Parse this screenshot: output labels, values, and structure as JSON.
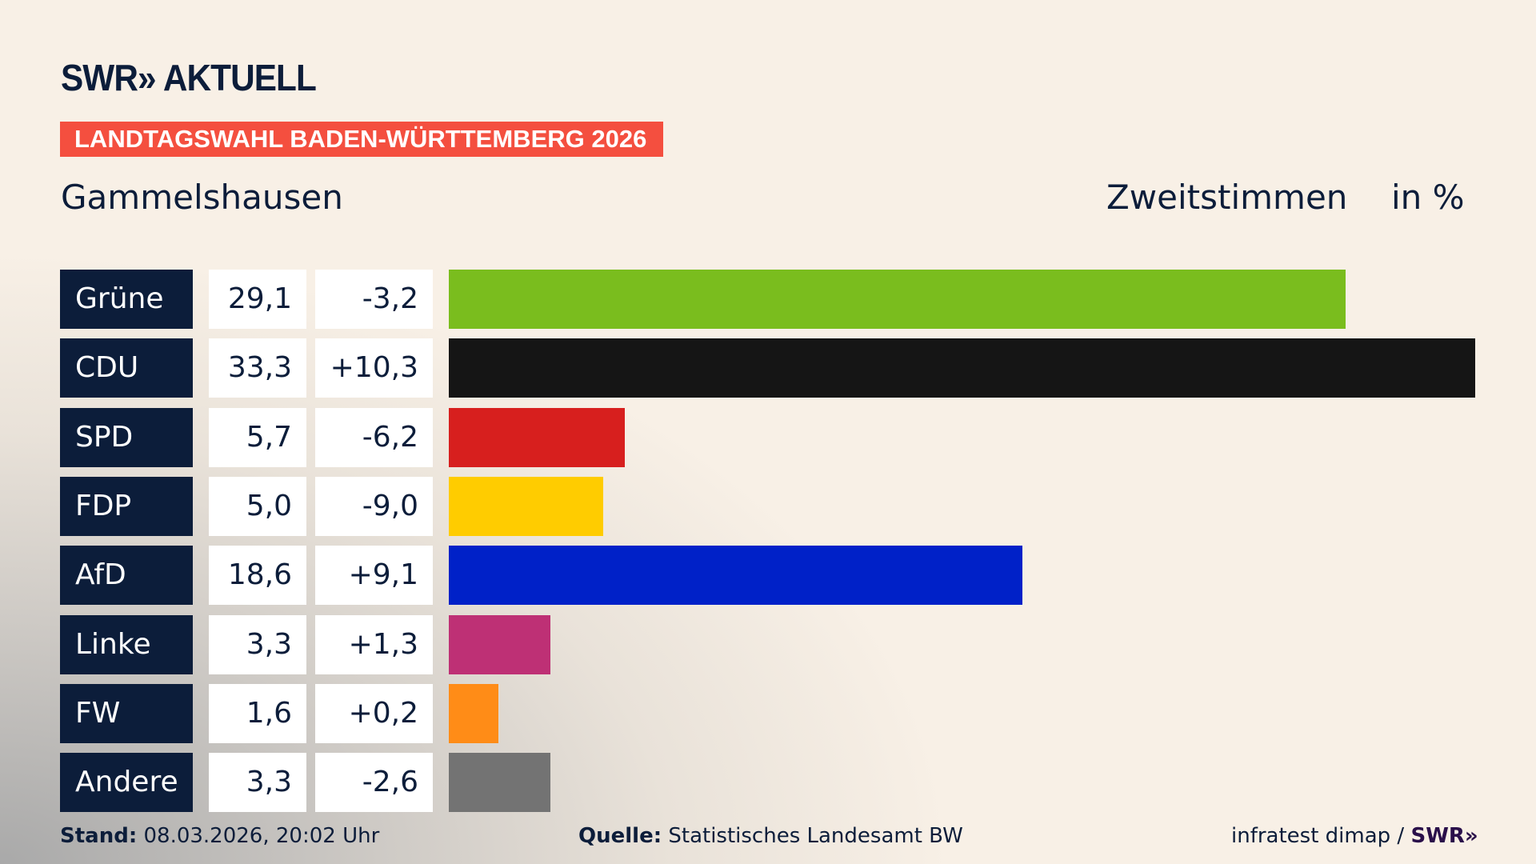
{
  "logo": "SWR» AKTUELL",
  "banner": "LANDTAGSWAHL BADEN-WÜRTTEMBERG 2026",
  "location": "Gammelshausen",
  "vote_type": "Zweitstimmen",
  "unit": "in %",
  "chart_data": {
    "type": "bar",
    "orientation": "horizontal",
    "categories": [
      "Grüne",
      "CDU",
      "SPD",
      "FDP",
      "AfD",
      "Linke",
      "FW",
      "Andere"
    ],
    "values": [
      29.1,
      33.3,
      5.7,
      5.0,
      18.6,
      3.3,
      1.6,
      3.3
    ],
    "labels": [
      "29,1",
      "33,3",
      "5,7",
      "5,0",
      "18,6",
      "3,3",
      "1,6",
      "3,3"
    ],
    "changes": [
      -3.2,
      10.3,
      -6.2,
      -9.0,
      9.1,
      1.3,
      0.2,
      -2.6
    ],
    "change_labels": [
      "-3,2",
      "+10,3",
      "-6,2",
      "-9,0",
      "+9,1",
      "+1,3",
      "+0,2",
      "-2,6"
    ],
    "colors": [
      "#7abd1e",
      "#151515",
      "#d71f1e",
      "#ffcc00",
      "#0021c8",
      "#be3075",
      "#ff8c17",
      "#737373"
    ],
    "xlim": [
      0,
      33.3
    ]
  },
  "footer": {
    "stand_label": "Stand:",
    "stand_value": "08.03.2026, 20:02 Uhr",
    "source_label": "Quelle:",
    "source_value": "Statistisches Landesamt BW",
    "credit": "infratest dimap /",
    "credit_logo": "SWR»"
  }
}
